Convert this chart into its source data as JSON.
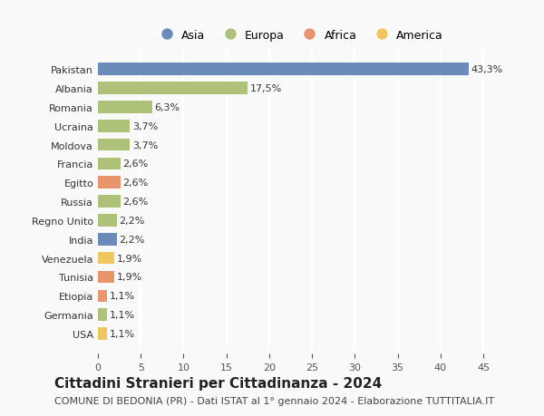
{
  "countries": [
    "Pakistan",
    "Albania",
    "Romania",
    "Ucraina",
    "Moldova",
    "Francia",
    "Egitto",
    "Russia",
    "Regno Unito",
    "India",
    "Venezuela",
    "Tunisia",
    "Etiopia",
    "Germania",
    "USA"
  ],
  "values": [
    43.3,
    17.5,
    6.3,
    3.7,
    3.7,
    2.6,
    2.6,
    2.6,
    2.2,
    2.2,
    1.9,
    1.9,
    1.1,
    1.1,
    1.1
  ],
  "labels": [
    "43,3%",
    "17,5%",
    "6,3%",
    "3,7%",
    "3,7%",
    "2,6%",
    "2,6%",
    "2,6%",
    "2,2%",
    "2,2%",
    "1,9%",
    "1,9%",
    "1,1%",
    "1,1%",
    "1,1%"
  ],
  "continents": [
    "Asia",
    "Europa",
    "Europa",
    "Europa",
    "Europa",
    "Europa",
    "Africa",
    "Europa",
    "Europa",
    "Asia",
    "America",
    "Africa",
    "Africa",
    "Europa",
    "America"
  ],
  "continent_colors": {
    "Asia": "#6b8cba",
    "Europa": "#adc178",
    "Africa": "#e8956d",
    "America": "#f0c75e"
  },
  "legend_order": [
    "Asia",
    "Europa",
    "Africa",
    "America"
  ],
  "title": "Cittadini Stranieri per Cittadinanza - 2024",
  "subtitle": "COMUNE DI BEDONIA (PR) - Dati ISTAT al 1° gennaio 2024 - Elaborazione TUTTITALIA.IT",
  "xlim": [
    0,
    47
  ],
  "xticks": [
    0,
    5,
    10,
    15,
    20,
    25,
    30,
    35,
    40,
    45
  ],
  "background_color": "#f9f9f9",
  "grid_color": "#ffffff",
  "bar_height": 0.65,
  "title_fontsize": 11,
  "subtitle_fontsize": 8,
  "label_fontsize": 8,
  "tick_fontsize": 8,
  "legend_fontsize": 9
}
